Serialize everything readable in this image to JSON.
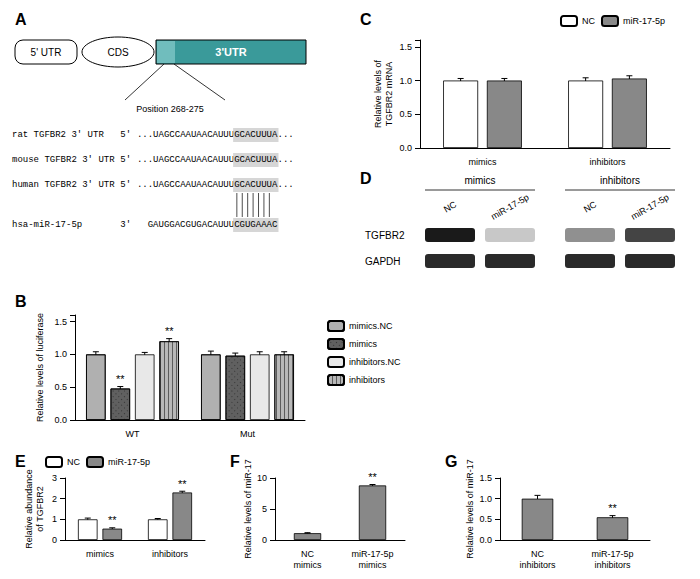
{
  "chart_data": [
    {
      "type": "diagram",
      "title": "A",
      "color": "#3a9a9a",
      "annotations": [
        "5' UTR",
        "CDS",
        "3'UTR",
        "Position 268-275",
        "rat TGFBR2 3' UTR",
        "5'",
        "...UAGCCAAUAACAUUU",
        "GCACUUUA",
        "...",
        "mouse TGFBR2 3' UTR",
        "5'",
        "...UAGCCAAUAACAUUU",
        "GCACUUUA",
        "...",
        "human TGFBR2 3' UTR",
        "5'",
        "...UAGCCAAUAACAUUU",
        "GCACUUUA",
        "...",
        "hsa-miR-17-5p",
        "3'",
        "GAUGGACGUGACAUUU",
        "CGUGAAAC"
      ]
    },
    {
      "type": "bar",
      "title": "B",
      "categories": [
        "WT",
        "Mut"
      ],
      "series": [
        {
          "name": "mimics.NC",
          "color": "#b0b0b0",
          "values": [
            1.0,
            1.0
          ],
          "errors": [
            0.04,
            0.05
          ]
        },
        {
          "name": "mimics",
          "color": "#606060",
          "values": [
            0.48,
            0.98
          ],
          "errors": [
            0.03,
            0.04
          ]
        },
        {
          "name": "inhibitors.NC",
          "color": "#e8e8e8",
          "values": [
            1.0,
            1.0
          ],
          "errors": [
            0.03,
            0.04
          ]
        },
        {
          "name": "inhibitors",
          "color": "#b8b8b8",
          "values": [
            1.2,
            1.0
          ],
          "errors": [
            0.04,
            0.04
          ]
        }
      ],
      "ylabel": "Relative levels of luciferase",
      "ylim": [
        0,
        1.6
      ],
      "yticks": [
        {
          "value": 0,
          "label": "0.0"
        },
        0.5,
        {
          "value": 1,
          "label": "1.0"
        },
        1.5
      ],
      "grid": false,
      "legend": "upper right",
      "annotations": [
        {
          "text": "**",
          "series": "mimics",
          "category": "WT"
        },
        {
          "text": "**",
          "series": "inhibitors",
          "category": "WT"
        }
      ]
    },
    {
      "type": "bar",
      "title": "C",
      "categories": [
        "mimics",
        "inhibitors"
      ],
      "series": [
        {
          "name": "NC",
          "color": "#ffffff",
          "values": [
            1.0,
            1.0
          ],
          "errors": [
            0.03,
            0.04
          ]
        },
        {
          "name": "miR-17-5p",
          "color": "#888888",
          "values": [
            1.0,
            1.03
          ],
          "errors": [
            0.03,
            0.04
          ]
        }
      ],
      "ylabel": "Relative levels of\nTGFBR2 mRNA",
      "ylim": [
        0,
        1.6
      ],
      "yticks": [
        {
          "value": 0,
          "label": "0.0"
        },
        0.5,
        {
          "value": 1,
          "label": "1.0"
        },
        1.5
      ],
      "grid": false,
      "legend": "upper right"
    },
    {
      "type": "diagram",
      "title": "D",
      "annotations": [
        "mimics",
        "inhibitors",
        "NC",
        "miR-17-5p",
        "NC",
        "miR-17-5p",
        "TGFBR2",
        "GAPDH"
      ]
    },
    {
      "type": "bar",
      "title": "E",
      "categories": [
        "mimics",
        "inhibitors"
      ],
      "series": [
        {
          "name": "NC",
          "color": "#ffffff",
          "values": [
            1.0,
            1.0
          ],
          "errors": [
            0.06,
            0.04
          ]
        },
        {
          "name": "miR-17-5p",
          "color": "#888888",
          "values": [
            0.55,
            2.3
          ],
          "errors": [
            0.04,
            0.06
          ]
        }
      ],
      "ylabel": "Relative abundance\nof TGFBR2",
      "ylim": [
        0,
        3.0
      ],
      "yticks": [
        0,
        1,
        2,
        3
      ],
      "grid": false,
      "legend": "upper right",
      "annotations": [
        {
          "text": "**",
          "series": "miR-17-5p",
          "category": "mimics"
        },
        {
          "text": "**",
          "series": "miR-17-5p",
          "category": "inhibitors"
        }
      ]
    },
    {
      "type": "bar",
      "title": "F",
      "categories": [
        "NC\nmimics",
        "miR-17-5p\nmimics"
      ],
      "values": [
        1.1,
        8.8
      ],
      "errors": [
        0.08,
        0.15
      ],
      "color": "#888888",
      "ylabel": "Relative levels of miR-17",
      "ylim": [
        0,
        10
      ],
      "yticks": [
        0,
        5,
        10
      ],
      "grid": false,
      "annotations": [
        {
          "text": "**",
          "category": "miR-17-5p\nmimics"
        }
      ]
    },
    {
      "type": "bar",
      "title": "G",
      "categories": [
        "NC\ninhibitors",
        "miR-17-5p\ninhibitors"
      ],
      "values": [
        1.0,
        0.55
      ],
      "errors": [
        0.08,
        0.04
      ],
      "color": "#888888",
      "ylabel": "Relative levels of miR-17",
      "ylim": [
        0,
        1.5
      ],
      "yticks": [
        {
          "value": 0,
          "label": "0.0"
        },
        0.5,
        {
          "value": 1,
          "label": "1.0"
        },
        1.5
      ],
      "grid": false,
      "annotations": [
        {
          "text": "**",
          "category": "miR-17-5p\ninhibitors"
        }
      ]
    }
  ]
}
